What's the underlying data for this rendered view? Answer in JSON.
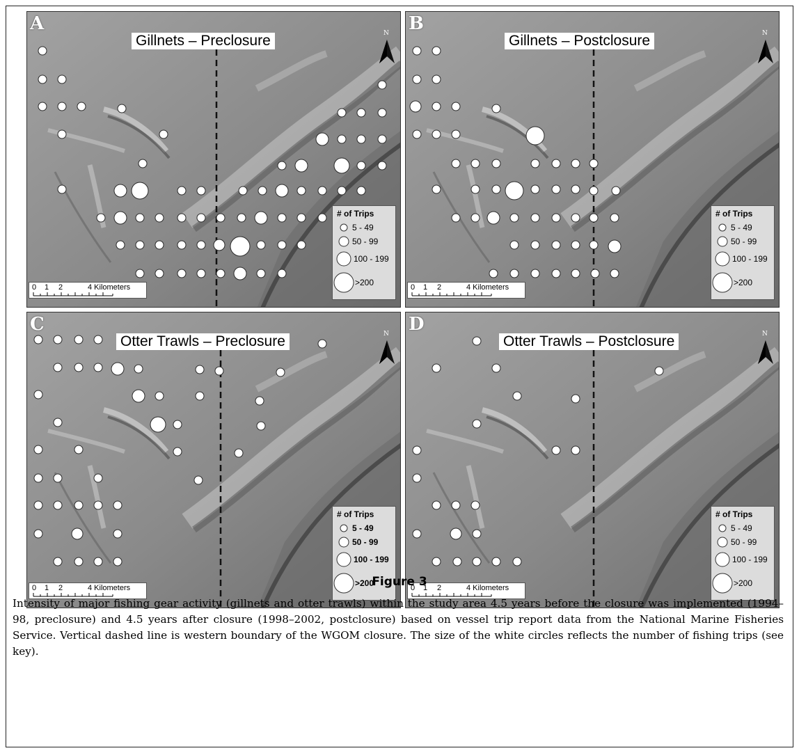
{
  "figure": {
    "heading": "Figure 3",
    "caption": "Intensity of major fishing gear activity (gillnets and otter trawls) within the study area 4.5 years before the closure was implemented (1994–98, preclosure) and 4.5 years after closure (1998–2002, postclosure) based on vessel trip report data from the National Marine Fisheries Service. Vertical dashed line is western boundary of the WGOM closure. The size of the white circles reflects the number of fishing trips (see key)."
  },
  "colors": {
    "land": "#8e8e8e",
    "land_light": "#b4b4b4",
    "land_dark": "#5a5a5a",
    "circle_fill": "#ffffff",
    "boundary": "#111111"
  },
  "north_label": "N",
  "scale": {
    "labels": [
      "0",
      "1",
      "2",
      "4 Kilometers"
    ]
  },
  "panels": [
    {
      "id": "A",
      "title": "Gillnets – Preclosure",
      "legend": {
        "title": "# of Trips",
        "bold_labels": false,
        "items": [
          "5 - 49",
          "50 - 99",
          "100 - 199",
          ">200"
        ]
      }
    },
    {
      "id": "B",
      "title": "Gillnets – Postclosure",
      "legend": {
        "title": "# of Trips",
        "bold_labels": false,
        "items": [
          "5 - 49",
          "50 - 99",
          "100 - 199",
          ">200"
        ]
      }
    },
    {
      "id": "C",
      "title": "Otter Trawls – Preclosure",
      "legend": {
        "title": "# of Trips",
        "bold_labels": true,
        "items": [
          "5 - 49",
          "50 - 99",
          "100 - 199",
          ">200"
        ]
      }
    },
    {
      "id": "D",
      "title": "Otter Trawls – Postclosure",
      "legend": {
        "title": "# of Trips",
        "bold_labels": false,
        "items": [
          "5 - 49",
          "50 - 99",
          "100 - 199",
          ">200"
        ]
      }
    }
  ]
}
